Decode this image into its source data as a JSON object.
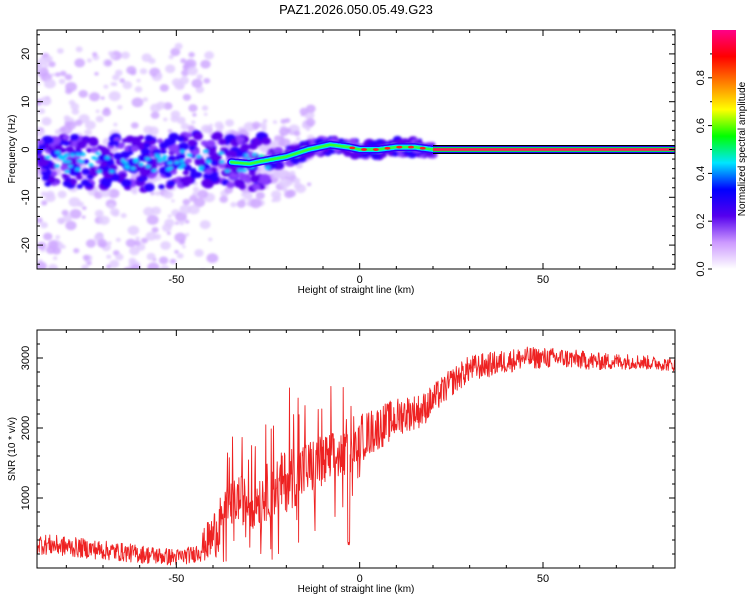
{
  "page_title": "PAZ1.2026.050.05.49.G23",
  "colors": {
    "snr_line": "#ee2222",
    "frame": "#000000",
    "band": "#000000",
    "ridge": "#ff1a4d"
  },
  "chart_data": [
    {
      "type": "heatmap",
      "name": "spectrogram",
      "title": "PAZ1.2026.050.05.49.G23",
      "xlabel": "Height of straight line (km)",
      "ylabel": "Frequency (Hz)",
      "xlim": [
        -88,
        86
      ],
      "ylim": [
        -25,
        25
      ],
      "x_ticks": [
        -50,
        0,
        50
      ],
      "x_tick_labels": [
        "-50",
        "0",
        "50"
      ],
      "y_ticks": [
        -20,
        -10,
        0,
        10,
        20
      ],
      "y_tick_labels": [
        "-20",
        "-10",
        "0",
        "10",
        "20"
      ],
      "dominant_ridge": [
        {
          "x": -88,
          "y": -2.5
        },
        {
          "x": -60,
          "y": -3
        },
        {
          "x": -45,
          "y": -2
        },
        {
          "x": -30,
          "y": -3
        },
        {
          "x": -27,
          "y": -2.5
        },
        {
          "x": -20,
          "y": -1.5
        },
        {
          "x": -14,
          "y": 0
        },
        {
          "x": -8,
          "y": 1
        },
        {
          "x": -3,
          "y": 0.5
        },
        {
          "x": 0,
          "y": 0
        },
        {
          "x": 5,
          "y": 0
        },
        {
          "x": 10,
          "y": 0.5
        },
        {
          "x": 15,
          "y": 0.5
        },
        {
          "x": 20,
          "y": 0
        },
        {
          "x": 86,
          "y": 0
        }
      ],
      "carrier_band_start_x": 20,
      "noise_region": [
        -88,
        -25
      ],
      "colorbar": {
        "label": "Normalized spectral amplitude",
        "range": [
          0,
          1
        ],
        "ticks": [
          0,
          0.2,
          0.4,
          0.6,
          0.8
        ],
        "tick_labels": [
          "0.0",
          "0.2",
          "0.4",
          "0.6",
          "0.8"
        ],
        "colormap": [
          "#ffffff",
          "#cc99ff",
          "#5500ee",
          "#0000ff",
          "#00e6ff",
          "#00ff00",
          "#ffff00",
          "#ff8000",
          "#ff0000",
          "#ff0088"
        ]
      }
    },
    {
      "type": "line",
      "name": "snr-profile",
      "xlabel": "Height of straight line (km)",
      "ylabel": "SNR (10 * v/v)",
      "xlim": [
        -88,
        86
      ],
      "ylim": [
        0,
        3400
      ],
      "x_ticks": [
        -50,
        0,
        50
      ],
      "x_tick_labels": [
        "-50",
        "0",
        "50"
      ],
      "y_ticks": [
        1000,
        2000,
        3000
      ],
      "y_tick_labels": [
        "1000",
        "2000",
        "3000"
      ],
      "envelope": [
        {
          "x": -88,
          "y": 350
        },
        {
          "x": -75,
          "y": 280
        },
        {
          "x": -60,
          "y": 200
        },
        {
          "x": -50,
          "y": 150
        },
        {
          "x": -45,
          "y": 200
        },
        {
          "x": -40,
          "y": 450
        },
        {
          "x": -37,
          "y": 800
        },
        {
          "x": -33,
          "y": 1000
        },
        {
          "x": -30,
          "y": 900
        },
        {
          "x": -25,
          "y": 1100
        },
        {
          "x": -20,
          "y": 1250
        },
        {
          "x": -15,
          "y": 1400
        },
        {
          "x": -10,
          "y": 1500
        },
        {
          "x": -6,
          "y": 1600
        },
        {
          "x": -2,
          "y": 1650
        },
        {
          "x": 0,
          "y": 1850
        },
        {
          "x": 5,
          "y": 2000
        },
        {
          "x": 12,
          "y": 2200
        },
        {
          "x": 17,
          "y": 2250
        },
        {
          "x": 20,
          "y": 2400
        },
        {
          "x": 25,
          "y": 2650
        },
        {
          "x": 30,
          "y": 2850
        },
        {
          "x": 40,
          "y": 2950
        },
        {
          "x": 45,
          "y": 3000
        },
        {
          "x": 55,
          "y": 3000
        },
        {
          "x": 65,
          "y": 2950
        },
        {
          "x": 75,
          "y": 2950
        },
        {
          "x": 86,
          "y": 2900
        }
      ],
      "dip": {
        "x": -3,
        "y": 330
      },
      "noise_amplitude_by_x": [
        {
          "x": -88,
          "amp": 150
        },
        {
          "x": -45,
          "amp": 120
        },
        {
          "x": -38,
          "amp": 450
        },
        {
          "x": -20,
          "amp": 700
        },
        {
          "x": -8,
          "amp": 600
        },
        {
          "x": 0,
          "amp": 350
        },
        {
          "x": 15,
          "amp": 250
        },
        {
          "x": 25,
          "amp": 200
        },
        {
          "x": 45,
          "amp": 160
        },
        {
          "x": 86,
          "amp": 90
        }
      ]
    }
  ]
}
